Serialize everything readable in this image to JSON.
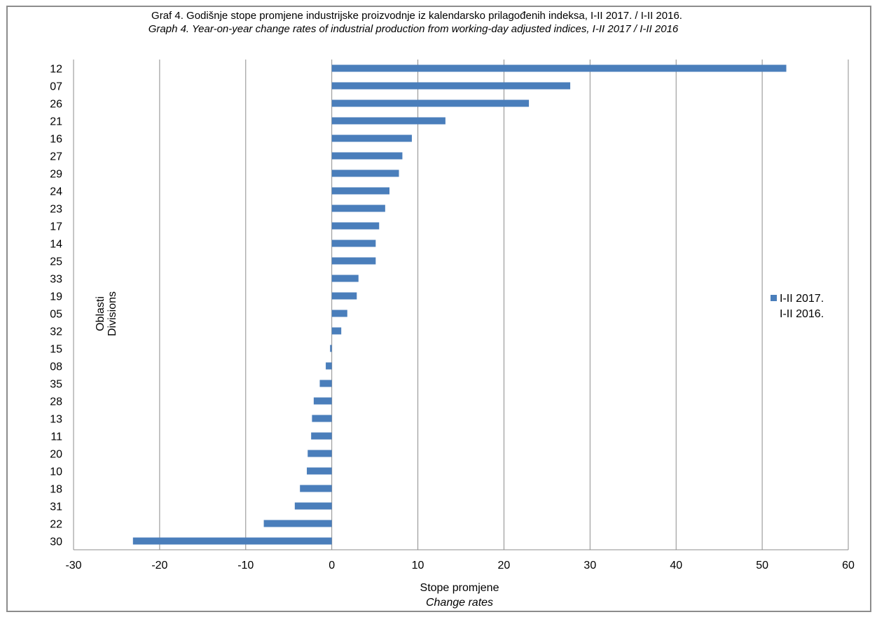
{
  "chart_data": {
    "type": "bar",
    "orientation": "horizontal",
    "title": "Graf 4. Godišnje stope  promjene industrijske proizvodnje iz kalendarsko prilagođenih indeksa, I-II  2017. /  I-II  2016.",
    "subtitle": "Graph 4. Year-on-year change rates of industrial production from working-day adjusted indices, I-II 2017 / I-II 2016",
    "xlabel": "Stope promjene",
    "xlabel_en": "Change rates",
    "ylabel": "Oblasti",
    "ylabel_en": "Divisions",
    "xlim": [
      -30,
      60
    ],
    "x_ticks": [
      -30,
      -20,
      -10,
      0,
      10,
      20,
      30,
      40,
      50,
      60
    ],
    "grid": "vertical",
    "legend_position": "right",
    "categories": [
      "12",
      "07",
      "26",
      "21",
      "16",
      "27",
      "29",
      "24",
      "23",
      "17",
      "14",
      "25",
      "33",
      "19",
      "05",
      "32",
      "15",
      "08",
      "35",
      "28",
      "13",
      "11",
      "20",
      "10",
      "18",
      "31",
      "22",
      "30"
    ],
    "series": [
      {
        "name": "I-II 2017. I-II 2016.",
        "legend_lines": [
          "I-II 2017.",
          "I-II 2016."
        ],
        "color": "#4a7ebb",
        "values": [
          52.8,
          27.7,
          22.9,
          13.2,
          9.3,
          8.2,
          7.8,
          6.7,
          6.2,
          5.5,
          5.1,
          5.1,
          3.1,
          2.9,
          1.8,
          1.1,
          -0.2,
          -0.7,
          -1.4,
          -2.1,
          -2.3,
          -2.4,
          -2.8,
          -2.9,
          -3.7,
          -4.3,
          -7.9,
          -23.1
        ]
      }
    ]
  }
}
